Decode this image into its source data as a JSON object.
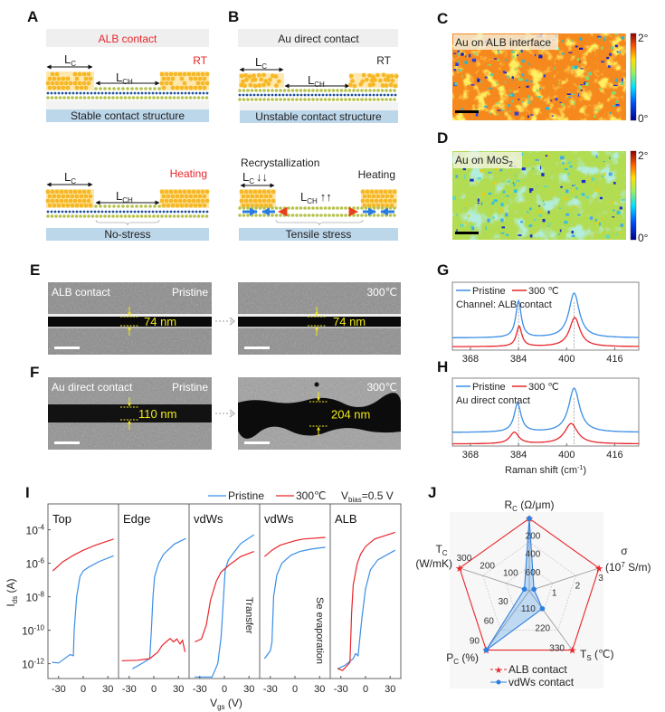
{
  "colors": {
    "gold_atom": "#f6b826",
    "gold_bg": "#fde8b0",
    "green_atom": "#b7c24b",
    "blue_atom": "#1e4f9c",
    "band": "#bcd6ea",
    "header": "#efefef",
    "accent_red": "#e8262b",
    "pristine_blue": "#3a8ee6",
    "heated_red": "#e8262b",
    "gap_yellow": "#f2ea1b"
  },
  "panels": {
    "A": {
      "label": "A",
      "title": "ALB contact",
      "rt": "RT",
      "heating": "Heating",
      "l": "L",
      "c_sub": "C",
      "ch_sub": "CH",
      "top_caption": "Stable contact structure",
      "bottom_caption": "No-stress"
    },
    "B": {
      "label": "B",
      "title": "Au direct contact",
      "rt": "RT",
      "heating": "Heating",
      "recryst": "Recrystallization",
      "l": "L",
      "c_sub": "C",
      "ch_sub": "CH",
      "down_arrows": "↓↓",
      "up_arrows": "↑↑",
      "top_caption": "Unstable contact structure",
      "bottom_caption": "Tensile stress"
    },
    "C": {
      "label": "C",
      "title": "Au on ALB interface",
      "cbar_max": "2°",
      "cbar_min": "0°"
    },
    "D": {
      "label": "D",
      "title": "Au on MoS",
      "title_sub": "2",
      "cbar_max": "2°",
      "cbar_min": "0°"
    },
    "E": {
      "label": "E",
      "left_title": "ALB contact",
      "left_state": "Pristine",
      "right_state": "300℃",
      "left_gap": "74 nm",
      "right_gap": "74 nm"
    },
    "F": {
      "label": "F",
      "left_title": "Au direct contact",
      "left_state": "Pristine",
      "right_state": "300℃",
      "left_gap": "110 nm",
      "right_gap": "204 nm"
    }
  },
  "chart_data": [
    {
      "label": "G",
      "type": "line",
      "legend": [
        "Pristine",
        "300 ℃"
      ],
      "annotation": "Channel: ALB contact",
      "xlim": [
        362,
        424
      ],
      "ylim": [
        0,
        1
      ],
      "xticks": [
        368,
        384,
        400,
        416
      ],
      "reference_lines": [
        384,
        402.5
      ],
      "series": [
        {
          "name": "Pristine",
          "color": "#3a8ee6",
          "baseline": 0.18,
          "peaks": [
            {
              "center": 384,
              "height": 0.54,
              "hwhm": 1.1
            },
            {
              "center": 402.5,
              "height": 0.66,
              "hwhm": 2.1
            }
          ]
        },
        {
          "name": "300 ℃",
          "color": "#e8262b",
          "baseline": 0.05,
          "peaks": [
            {
              "center": 384.2,
              "height": 0.3,
              "hwhm": 1.1
            },
            {
              "center": 402.7,
              "height": 0.43,
              "hwhm": 2.1
            }
          ]
        }
      ]
    },
    {
      "label": "H",
      "type": "line",
      "legend": [
        "Pristine",
        "300 ℃"
      ],
      "annotation": "Au direct contact",
      "xlabel": "Raman shift (cm",
      "xlabel_sup": "-1",
      "xlabel_end": ")",
      "xlim": [
        362,
        424
      ],
      "ylim": [
        0,
        1
      ],
      "xticks": [
        368,
        384,
        400,
        416
      ],
      "reference_lines": [
        384,
        402.5
      ],
      "series": [
        {
          "name": "Pristine",
          "color": "#3a8ee6",
          "baseline": 0.2,
          "peaks": [
            {
              "center": 383.7,
              "height": 0.42,
              "hwhm": 1.4
            },
            {
              "center": 402.5,
              "height": 0.65,
              "hwhm": 2.2
            }
          ]
        },
        {
          "name": "300 ℃",
          "color": "#e8262b",
          "baseline": 0.03,
          "peaks": [
            {
              "center": 382.6,
              "height": 0.17,
              "hwhm": 1.8
            },
            {
              "center": 401.5,
              "height": 0.3,
              "hwhm": 2.6
            }
          ]
        }
      ]
    },
    {
      "label": "I",
      "type": "line",
      "yscale": "log",
      "legend": [
        "Pristine",
        "300℃"
      ],
      "bias": {
        "v": "V",
        "sub": "bias",
        "value": "=0.5 V"
      },
      "ylabel": "I",
      "ylabel_sub": "ds",
      "ylabel_unit": " (A)",
      "xlabel": "V",
      "xlabel_sub": "gs",
      "xlabel_unit": " (V)",
      "xlim": [
        -43,
        43
      ],
      "ylim": [
        1.3e-13,
        0.0035
      ],
      "xticks": [
        -30,
        0,
        30
      ],
      "yticks": [
        {
          "value": 0.0001,
          "base": "10",
          "exp": "-4"
        },
        {
          "value": 1e-06,
          "base": "10",
          "exp": "-6"
        },
        {
          "value": 1e-08,
          "base": "10",
          "exp": "-8"
        },
        {
          "value": 1e-10,
          "base": "10",
          "exp": "-10"
        },
        {
          "value": 1e-12,
          "base": "10",
          "exp": "-12"
        }
      ],
      "panels": [
        {
          "title": "Top",
          "annotation": "",
          "pristine": [
            [
              -38,
              1.2e-12
            ],
            [
              -30,
              1.1e-12
            ],
            [
              -20,
              2.5e-12
            ],
            [
              -16,
              3.5e-12
            ],
            [
              -12,
              3e-12
            ],
            [
              -11,
              1e-10
            ],
            [
              -8,
              1e-08
            ],
            [
              -4,
              1.6e-07
            ],
            [
              0,
              3.5e-07
            ],
            [
              7,
              6e-07
            ],
            [
              20,
              1.3e-06
            ],
            [
              37,
              2.8e-06
            ]
          ],
          "heated": [
            [
              -37,
              3.5e-07
            ],
            [
              -25,
              1.2e-06
            ],
            [
              -12,
              3e-06
            ],
            [
              0,
              6e-06
            ],
            [
              15,
              1.2e-05
            ],
            [
              37,
              2.8e-05
            ]
          ]
        },
        {
          "title": "Edge",
          "annotation": "",
          "pristine": [
            [
              -26,
              5e-13
            ],
            [
              -15,
              1e-12
            ],
            [
              -5,
              2e-12
            ],
            [
              -3,
              1e-10
            ],
            [
              -1,
              1e-08
            ],
            [
              1,
              1.6e-07
            ],
            [
              6,
              1e-06
            ],
            [
              12,
              3.5e-06
            ],
            [
              25,
              1.4e-05
            ],
            [
              39,
              3e-05
            ]
          ],
          "heated": [
            [
              -39,
              1.5e-12
            ],
            [
              -20,
              1.6e-12
            ],
            [
              -5,
              2e-12
            ],
            [
              5,
              5e-12
            ],
            [
              10,
              1.2e-11
            ],
            [
              15,
              2e-11
            ],
            [
              20,
              3.2e-11
            ],
            [
              24,
              2e-11
            ],
            [
              28,
              3e-11
            ],
            [
              32,
              1.5e-11
            ],
            [
              35,
              2.5e-11
            ],
            [
              38,
              5e-12
            ]
          ]
        },
        {
          "title": "vdWs",
          "annotation": "Transfer",
          "pristine": [
            [
              -36,
              1.6e-13
            ],
            [
              -15,
              1.6e-13
            ],
            [
              -8,
              1e-12
            ],
            [
              -4,
              4e-11
            ],
            [
              -1,
              1e-08
            ],
            [
              1,
              4e-07
            ],
            [
              5,
              1.6e-06
            ],
            [
              10,
              3.5e-06
            ],
            [
              20,
              1.5e-05
            ],
            [
              36,
              5e-05
            ]
          ],
          "heated": [
            [
              -36,
              2e-11
            ],
            [
              -28,
              3e-11
            ],
            [
              -22,
              2e-10
            ],
            [
              -17,
              6e-09
            ],
            [
              -10,
              8e-08
            ],
            [
              -4,
              3e-07
            ],
            [
              6,
              8e-07
            ],
            [
              20,
              2.5e-06
            ],
            [
              36,
              5e-06
            ]
          ]
        },
        {
          "title": "vdWs",
          "annotation": "Se evaporation",
          "pristine": [
            [
              -37,
              2e-12
            ],
            [
              -30,
              6e-12
            ],
            [
              -28,
              2e-11
            ],
            [
              -26,
              1e-08
            ],
            [
              -22,
              2e-07
            ],
            [
              -16,
              1e-06
            ],
            [
              -5,
              3e-06
            ],
            [
              6,
              5e-06
            ],
            [
              20,
              7e-06
            ],
            [
              37,
              9e-06
            ]
          ],
          "heated": [
            [
              -37,
              2.5e-06
            ],
            [
              -28,
              6e-06
            ],
            [
              -18,
              1.2e-05
            ],
            [
              0,
              2.2e-05
            ],
            [
              10,
              2.8e-05
            ],
            [
              37,
              3.5e-05
            ]
          ]
        },
        {
          "title": "ALB",
          "annotation": "",
          "pristine": [
            [
              -34,
              5e-13
            ],
            [
              -25,
              8e-13
            ],
            [
              -15,
              2e-12
            ],
            [
              -12,
              4e-12
            ],
            [
              -9,
              3e-12
            ],
            [
              -6,
              1e-10
            ],
            [
              -4,
              8e-10
            ],
            [
              0,
              3e-08
            ],
            [
              6,
              4e-07
            ],
            [
              15,
              1.6e-06
            ],
            [
              36,
              6e-06
            ]
          ],
          "heated": [
            [
              -34,
              5e-13
            ],
            [
              -28,
              4e-13
            ],
            [
              -22,
              8e-13
            ],
            [
              -19,
              1.2e-12
            ],
            [
              -17,
              1e-09
            ],
            [
              -15,
              5e-08
            ],
            [
              -10,
              1e-06
            ],
            [
              -6,
              3.5e-06
            ],
            [
              0,
              1e-05
            ],
            [
              11,
              2.8e-05
            ],
            [
              36,
              7e-05
            ]
          ]
        }
      ]
    },
    {
      "label": "J",
      "type": "radar",
      "axes": [
        {
          "name": "R",
          "sub": "C",
          "unit": " (Ω/μm)",
          "range": [
            0,
            800
          ],
          "reversed": true,
          "ticks": [
            200,
            400,
            600
          ]
        },
        {
          "name": "σ",
          "unit": "(10",
          "unit_sup": "7",
          "unit_end": " S/m)",
          "range": [
            0,
            3
          ],
          "ticks": [
            1,
            2,
            3
          ]
        },
        {
          "name": "T",
          "sub": "S",
          "unit": " (℃)",
          "range": [
            0,
            330
          ],
          "ticks": [
            110,
            220,
            330
          ]
        },
        {
          "name": "P",
          "sub": "C",
          "unit": " (%)",
          "range": [
            0,
            90
          ],
          "ticks": [
            30,
            60,
            90
          ]
        },
        {
          "name": "T",
          "sub": "C",
          "unit": "(W/mK)",
          "range": [
            0,
            300
          ],
          "ticks": [
            100,
            200,
            300
          ]
        }
      ],
      "series": [
        {
          "name": "ALB contact",
          "color": "#e8262b",
          "marker": "star",
          "values": [
            10,
            3,
            330,
            90,
            300
          ]
        },
        {
          "name": "vdWs contact",
          "color": "#2f7fe0",
          "marker": "circle",
          "values": [
            10,
            0.2,
            100,
            90,
            21
          ]
        }
      ]
    }
  ]
}
